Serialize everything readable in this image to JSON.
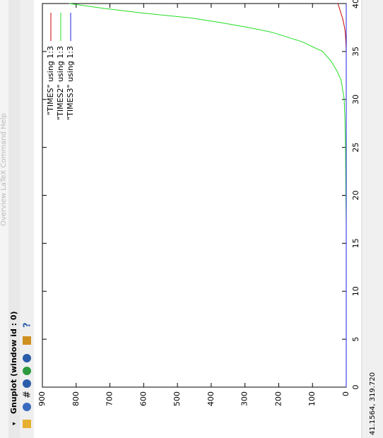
{
  "window": {
    "title": "Gnuplot (window id : 0)",
    "background_menu": "Overview   LaTeX   Command   Help",
    "status": "41.1564, 319.720"
  },
  "chart_data": {
    "type": "line",
    "x": [
      0,
      5,
      10,
      15,
      17,
      20,
      25,
      28,
      30,
      32,
      33,
      34,
      35,
      36,
      37,
      37.5,
      38,
      38.5,
      39,
      39.5,
      40
    ],
    "series": [
      {
        "name": "\"TIMES\" using 1:3",
        "color": "#cc0000",
        "values": [
          0,
          0,
          0,
          0,
          0,
          0,
          0,
          0,
          0,
          0,
          0,
          0,
          0,
          1,
          3,
          5,
          8,
          11,
          16,
          20,
          25
        ]
      },
      {
        "name": "\"TIMES2\" using 1:3",
        "color": "#22dd22",
        "values": [
          0,
          0,
          0,
          0,
          0,
          1,
          2,
          4,
          6,
          15,
          28,
          45,
          70,
          130,
          220,
          290,
          370,
          460,
          600,
          720,
          820
        ]
      },
      {
        "name": "\"TIMES3\" using 1:3",
        "color": "#2222dd",
        "values": [
          0,
          0,
          0,
          0,
          0,
          0,
          0,
          0,
          0,
          0,
          0,
          0,
          0,
          0,
          0,
          0,
          0,
          0,
          0,
          0,
          0
        ]
      }
    ],
    "xlim": [
      0,
      40
    ],
    "xticks": [
      0,
      5,
      10,
      15,
      20,
      25,
      30,
      35,
      40
    ],
    "ylim": [
      0,
      900
    ],
    "yticks": [
      0,
      100,
      200,
      300,
      400,
      500,
      600,
      700,
      800,
      900
    ]
  }
}
